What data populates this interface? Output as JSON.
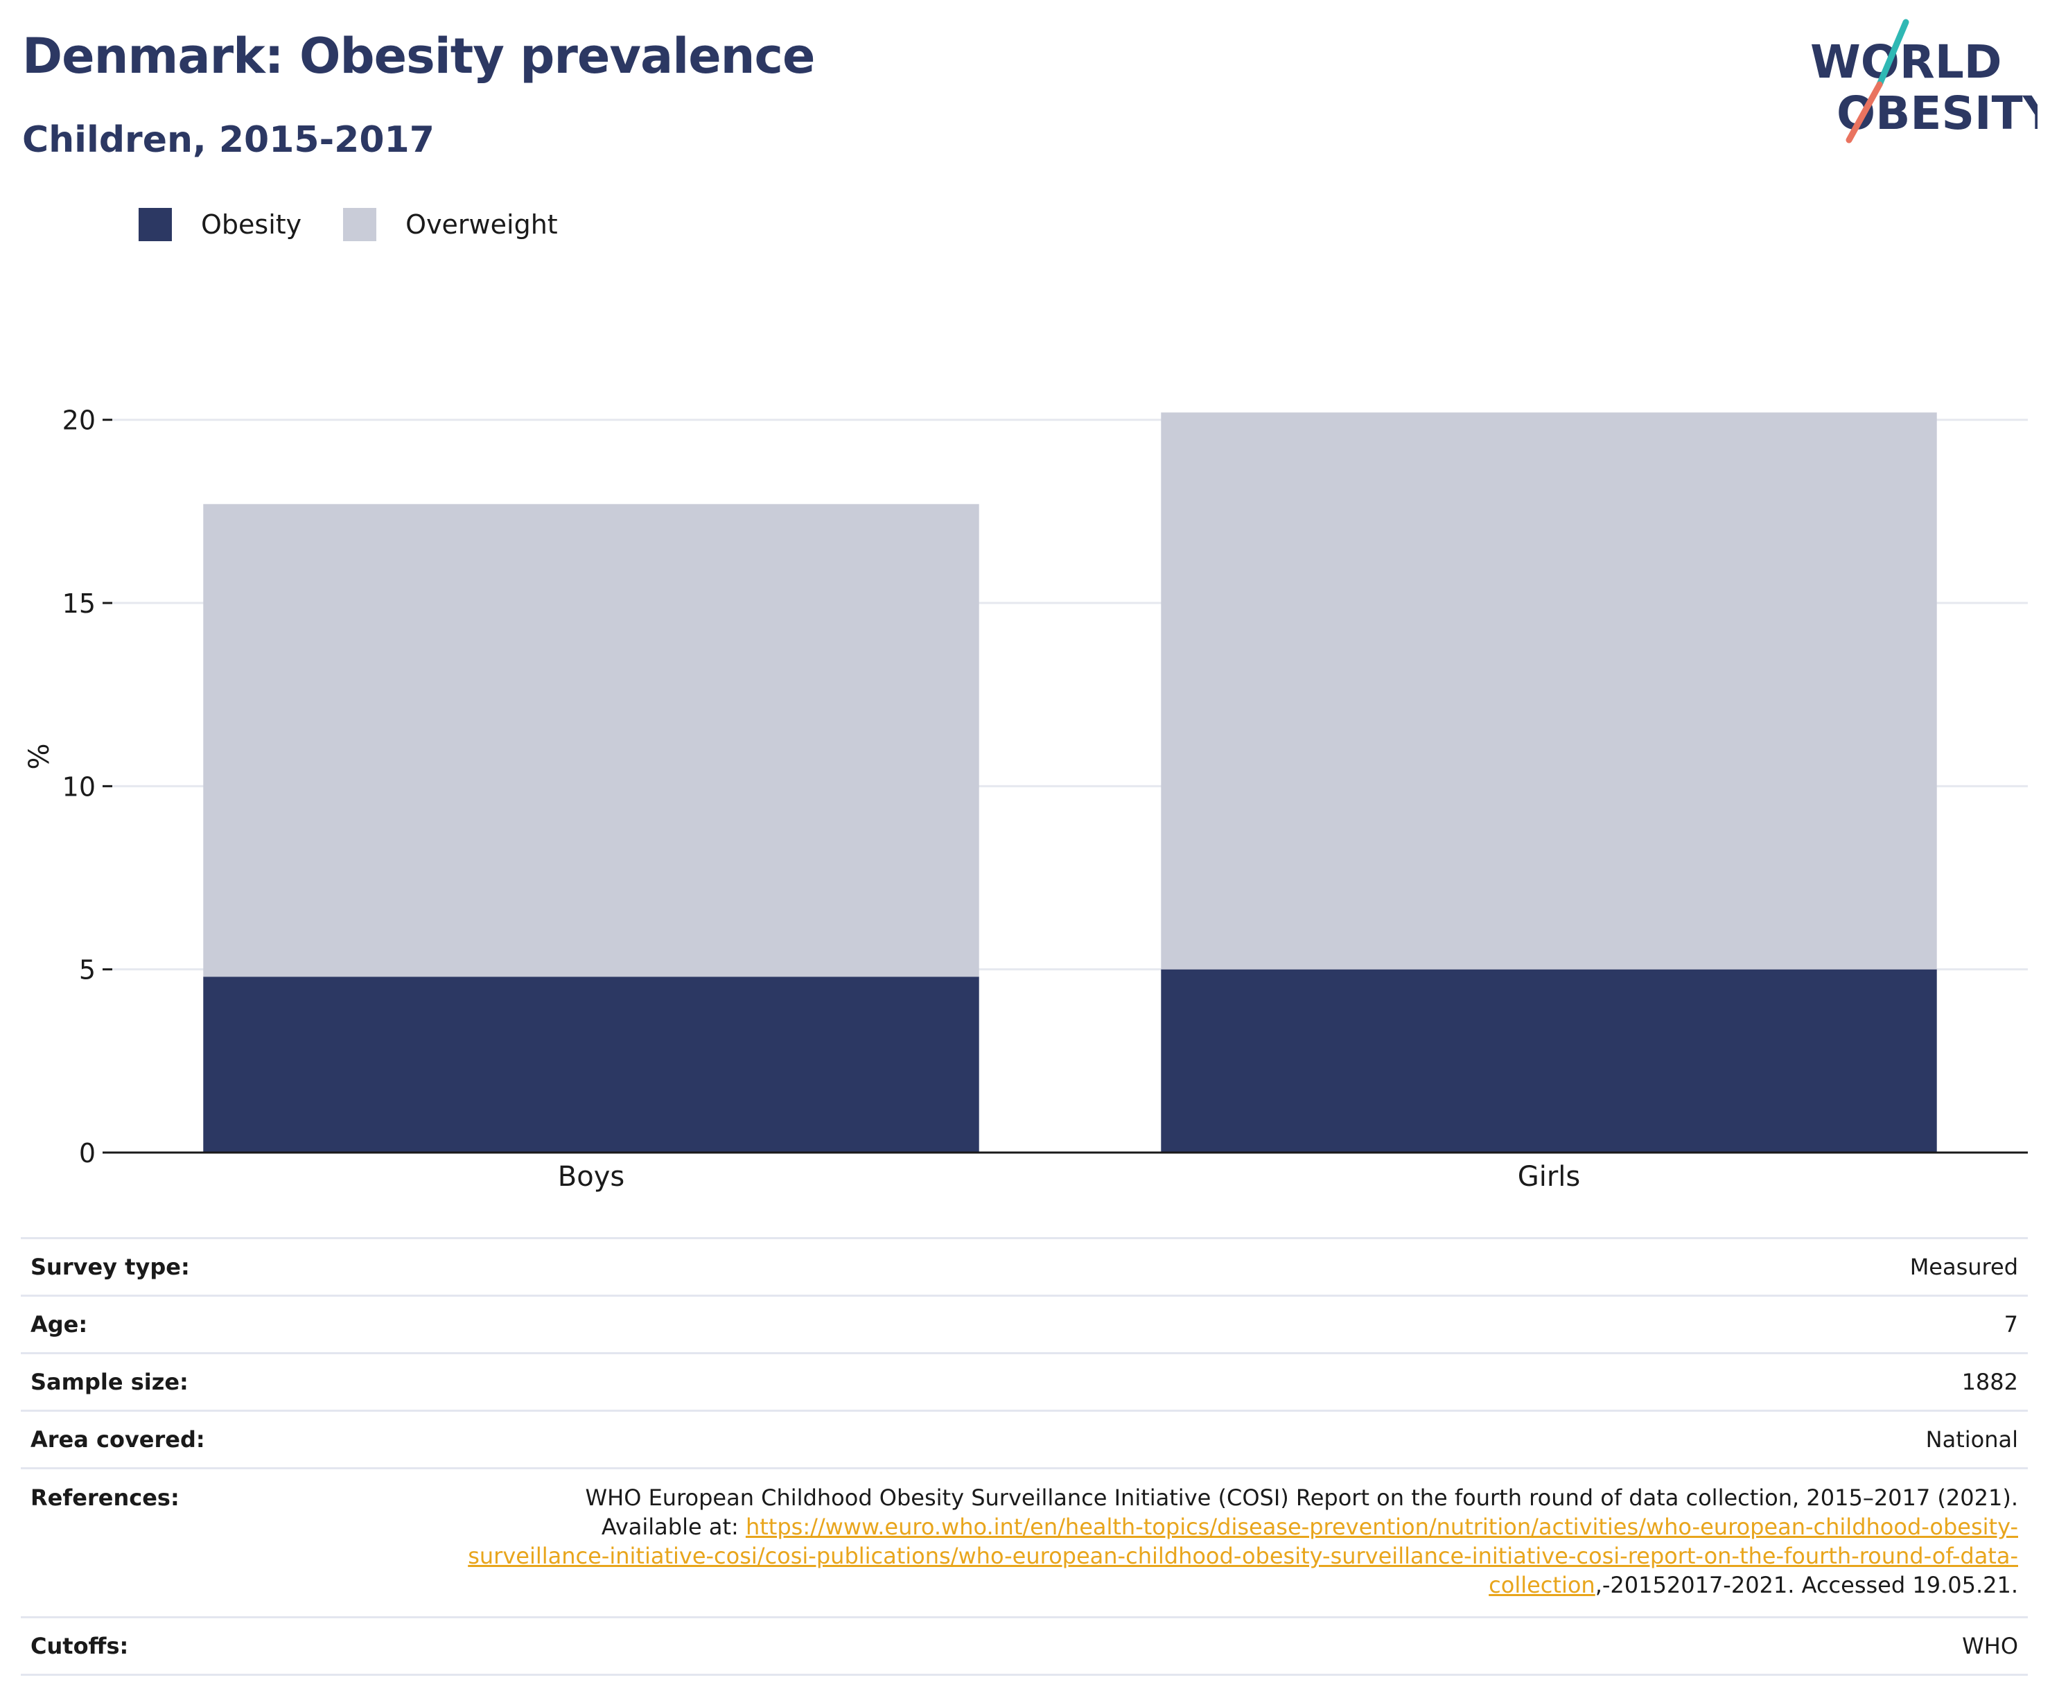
{
  "header": {
    "title": "Denmark: Obesity prevalence",
    "subtitle": "Children, 2015-2017"
  },
  "logo": {
    "line1": "WORLD",
    "line2": "OBESITY",
    "text_color": "#2c3863",
    "slash_colors": [
      "#2fb8b4",
      "#e9735f"
    ]
  },
  "legend": [
    {
      "label": "Obesity",
      "color": "#2c3863"
    },
    {
      "label": "Overweight",
      "color": "#c9ccd8"
    }
  ],
  "chart_data": {
    "type": "bar",
    "stacked": true,
    "categories": [
      "Boys",
      "Girls"
    ],
    "series": [
      {
        "name": "Obesity",
        "values": [
          4.8,
          5.0
        ],
        "color": "#2c3863"
      },
      {
        "name": "Overweight",
        "values": [
          12.9,
          15.2
        ],
        "color": "#c9ccd8"
      }
    ],
    "ylabel": "%",
    "ylim": [
      0,
      22
    ],
    "yticks": [
      0,
      5,
      10,
      15,
      20
    ],
    "grid": true
  },
  "meta": {
    "survey_type": {
      "label": "Survey type:",
      "value": "Measured"
    },
    "age": {
      "label": "Age:",
      "value": "7"
    },
    "sample_size": {
      "label": "Sample size:",
      "value": "1882"
    },
    "area_covered": {
      "label": "Area covered:",
      "value": "National"
    },
    "references": {
      "label": "References:",
      "line1": "WHO European Childhood Obesity Surveillance Initiative (COSI) Report on the fourth round of data collection, 2015–2017 (2021).",
      "prefix": "Available at: ",
      "url": "https://www.euro.who.int/en/health-topics/disease-prevention/nutrition/activities/who-european-childhood-obesity-surveillance-initiative-cosi/cosi-publications/who-european-childhood-obesity-surveillance-initiative-cosi-report-on-the-fourth-round-of-data-collection",
      "suffix": ",-20152017-2021. Accessed 19.05.21."
    },
    "cutoffs": {
      "label": "Cutoffs:",
      "value": "WHO"
    }
  }
}
